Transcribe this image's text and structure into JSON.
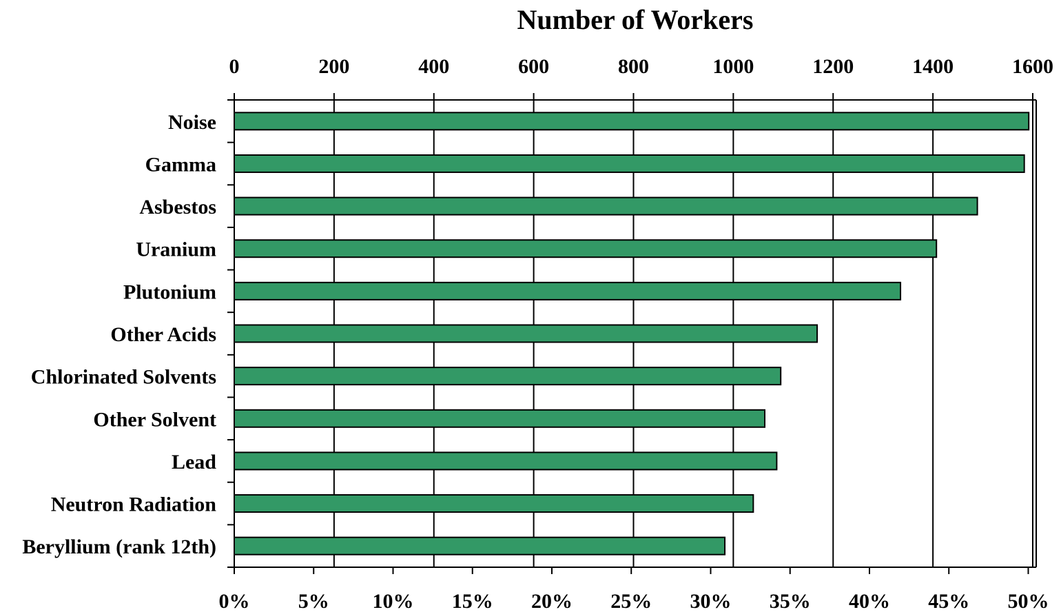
{
  "chart_data": {
    "type": "bar",
    "orientation": "horizontal",
    "title": "Number of Workers",
    "categories": [
      "Noise",
      "Gamma",
      "Asbestos",
      "Uranium",
      "Plutonium",
      "Other Acids",
      "Chlorinated Solvents",
      "Other Solvent",
      "Lead",
      "Neutron Radiation",
      "Beryllium (rank 12th)"
    ],
    "values": [
      1592,
      1583,
      1489,
      1407,
      1335,
      1168,
      1095,
      1063,
      1087,
      1040,
      983
    ],
    "x_top": {
      "range": [
        0,
        1600
      ],
      "tick_labels": [
        "0",
        "200",
        "400",
        "600",
        "800",
        "1000",
        "1200",
        "1400",
        "1600"
      ]
    },
    "x_bottom": {
      "range_percent": [
        0,
        50.5
      ],
      "tick_labels": [
        "0%",
        "5%",
        "10%",
        "15%",
        "20%",
        "25%",
        "30%",
        "35%",
        "40%",
        "45%",
        "50%"
      ]
    },
    "grid": {
      "vertical": true,
      "horizontal": false
    },
    "legend": "none",
    "bar_color": "#339966"
  }
}
